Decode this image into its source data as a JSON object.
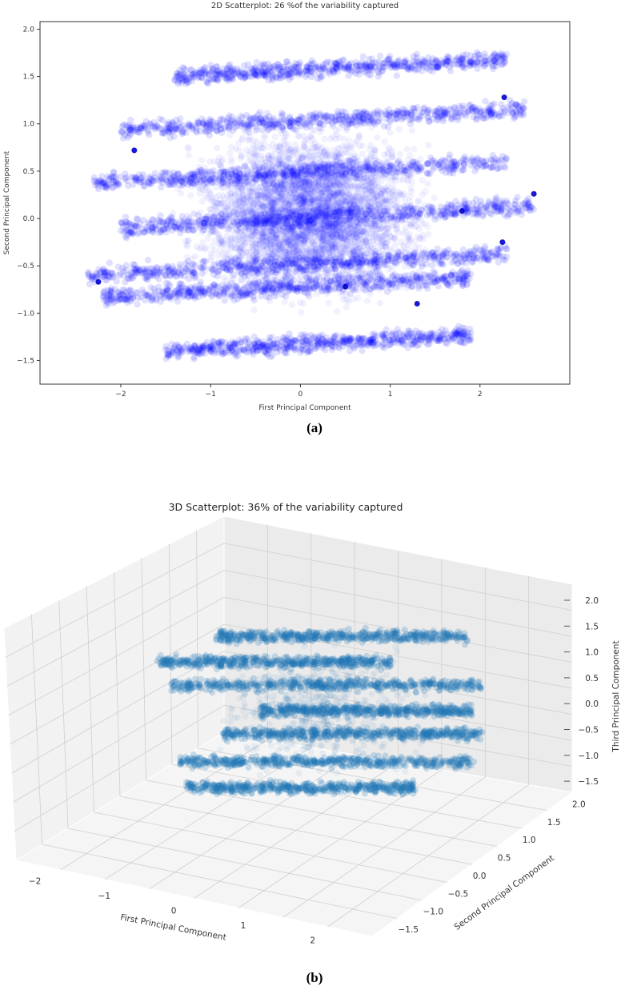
{
  "chart_data": [
    {
      "type": "scatter",
      "title": "2D Scatterplot:  26 %of the variability captured",
      "xlabel": "First Principal Component",
      "ylabel": "Second Principal Component",
      "xlim": [
        -2.9,
        3.0
      ],
      "ylim": [
        -1.75,
        2.08
      ],
      "xticks": [
        -2,
        -1,
        0,
        1,
        2
      ],
      "xtick_labels": [
        "−2",
        "−1",
        "0",
        "1",
        "2"
      ],
      "yticks": [
        2.0,
        1.5,
        1.0,
        0.5,
        0.0,
        -0.5,
        -1.0,
        -1.5
      ],
      "ytick_labels": [
        "2.0",
        "1.5",
        "1.0",
        "0.5",
        "0.0",
        "−0.5",
        "−1.0",
        "−1.5"
      ],
      "grid": false,
      "color": "#0000ff",
      "clusters": [
        {
          "y": 1.55,
          "x": [
            -1.4,
            2.3
          ]
        },
        {
          "y": 0.98,
          "x": [
            -2.0,
            2.5
          ]
        },
        {
          "y": 0.42,
          "x": [
            -2.3,
            2.3
          ]
        },
        {
          "y": -0.05,
          "x": [
            -2.0,
            2.6
          ]
        },
        {
          "y": -0.55,
          "x": [
            -2.4,
            2.3
          ]
        },
        {
          "y": -0.78,
          "x": [
            -2.2,
            1.9
          ]
        },
        {
          "y": -1.35,
          "x": [
            -1.5,
            1.9
          ]
        }
      ],
      "highlight_points": [
        {
          "x": -2.25,
          "y": -0.67
        },
        {
          "x": -1.85,
          "y": 0.72
        },
        {
          "x": 1.8,
          "y": 0.08
        },
        {
          "x": 2.27,
          "y": 1.28
        },
        {
          "x": 2.6,
          "y": 0.26
        },
        {
          "x": 2.25,
          "y": -0.25
        },
        {
          "x": 1.3,
          "y": -0.9
        },
        {
          "x": 0.5,
          "y": -0.72
        }
      ]
    },
    {
      "type": "scatter",
      "title": "3D Scatterplot: 36% of the variability captured",
      "xlabel": "First Principal Component",
      "ylabel": "Second Principal Component",
      "zlabel": "Third Principal Component",
      "xtick_labels": [
        "−2",
        "−1",
        "0",
        "1",
        "2"
      ],
      "ytick_labels": [
        "−1.5",
        "−1.0",
        "−0.5",
        "0.0",
        "0.5",
        "1.0",
        "1.5",
        "2.0"
      ],
      "ztick_labels": [
        "2.0",
        "1.5",
        "1.0",
        "0.5",
        "0.0",
        "−0.5",
        "−1.0",
        "−1.5"
      ],
      "grid": true,
      "color": "#1f77b4",
      "clusters": [
        {
          "z": 1.45,
          "x": [
            -1.2,
            2.2
          ]
        },
        {
          "z": 0.95,
          "x": [
            -2.0,
            1.2
          ]
        },
        {
          "z": 0.5,
          "x": [
            -1.8,
            2.4
          ]
        },
        {
          "z": 0.0,
          "x": [
            -0.6,
            2.3
          ]
        },
        {
          "z": -0.45,
          "x": [
            -1.1,
            2.4
          ]
        },
        {
          "z": -1.0,
          "x": [
            -1.7,
            2.3
          ]
        },
        {
          "z": -1.5,
          "x": [
            -1.6,
            1.5
          ]
        }
      ]
    }
  ],
  "captions": {
    "a": "(a)",
    "b": "(b)"
  }
}
